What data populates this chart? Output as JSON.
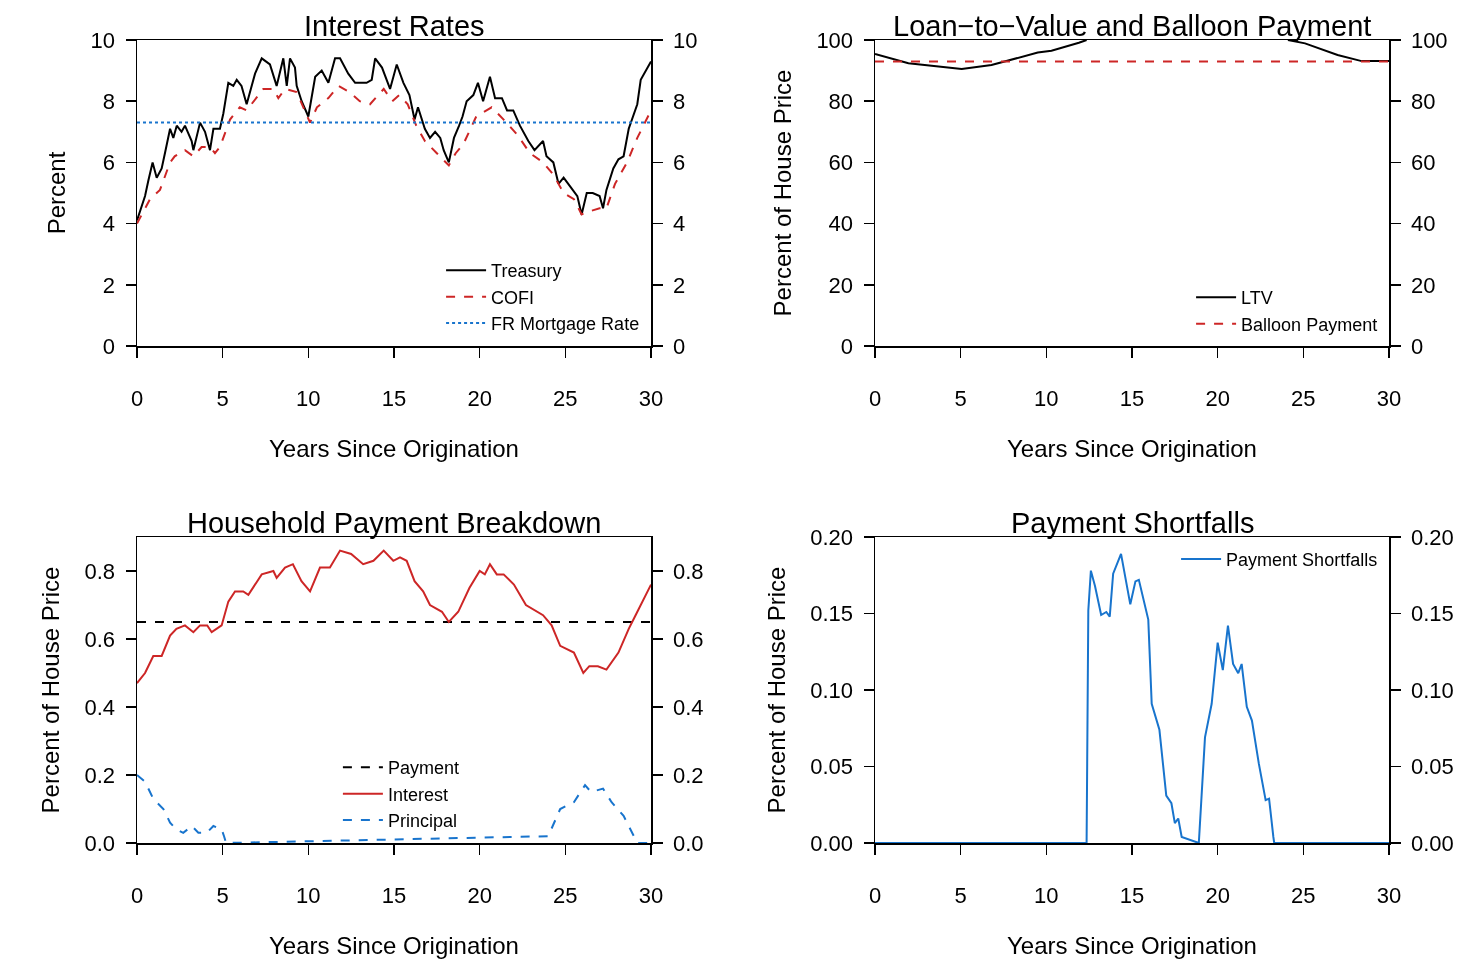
{
  "chart_data": [
    {
      "type": "line",
      "title": "Interest Rates",
      "xlabel": "Years Since Origination",
      "ylabel": "Percent",
      "xlim": [
        0,
        30
      ],
      "xticks": [
        0,
        5,
        10,
        15,
        20,
        25,
        30
      ],
      "ylim": [
        0,
        10
      ],
      "yticks": [
        0,
        2,
        4,
        6,
        8,
        10
      ],
      "y2lim": [
        0,
        10
      ],
      "y2ticks": [
        0,
        2,
        4,
        6,
        8,
        10
      ],
      "legend": "bottom right",
      "series": [
        {
          "name": "Treasury",
          "color": "#000000",
          "line_style": "solid",
          "x": [
            0,
            0.47,
            0.66,
            0.91,
            1.15,
            1.44,
            1.63,
            1.93,
            2.12,
            2.32,
            2.6,
            2.8,
            3.19,
            3.29,
            3.68,
            3.97,
            4.26,
            4.46,
            4.84,
            5.04,
            5.33,
            5.62,
            5.82,
            6.1,
            6.4,
            6.89,
            7.28,
            7.76,
            8.15,
            8.54,
            8.74,
            8.93,
            9.22,
            9.32,
            9.61,
            10,
            10.4,
            10.78,
            11.17,
            11.56,
            11.85,
            12.33,
            12.73,
            13.4,
            13.7,
            13.9,
            14.3,
            14.77,
            15.16,
            15.55,
            15.9,
            16.2,
            16.4,
            16.8,
            17.1,
            17.4,
            17.7,
            17.9,
            18.2,
            18.5,
            18.8,
            19,
            19.24,
            19.63,
            19.9,
            20.2,
            20.6,
            20.9,
            21.3,
            21.6,
            21.96,
            22.35,
            22.84,
            23.2,
            23.7,
            23.9,
            24.3,
            24.6,
            24.9,
            25.3,
            25.7,
            25.95,
            26.25,
            26.6,
            27,
            27.2,
            27.4,
            27.8,
            28.1,
            28.4,
            28.7,
            29.2,
            29.4,
            30
          ],
          "values": [
            4.1,
            4.9,
            5.4,
            6,
            5.5,
            5.8,
            6.3,
            7.1,
            6.8,
            7.2,
            7,
            7.2,
            6.7,
            6.4,
            7.3,
            7,
            6.4,
            7.1,
            7.1,
            7.6,
            8.6,
            8.5,
            8.7,
            8.5,
            7.9,
            8.9,
            9.4,
            9.2,
            8.5,
            9.4,
            8.5,
            9.4,
            9.1,
            8.5,
            8,
            7.5,
            8.8,
            9,
            8.6,
            9.4,
            9.4,
            8.9,
            8.6,
            8.6,
            8.7,
            9.4,
            9.1,
            8.4,
            9.2,
            8.6,
            8.2,
            7.4,
            7.8,
            7.1,
            6.8,
            7,
            6.8,
            6.4,
            6,
            6.8,
            7.2,
            7.5,
            8,
            8.2,
            8.6,
            8,
            8.8,
            8.1,
            8.1,
            7.7,
            7.7,
            7.2,
            6.7,
            6.4,
            6.7,
            6.2,
            6,
            5.3,
            5.5,
            5.2,
            4.9,
            4.3,
            5,
            5,
            4.9,
            4.5,
            5.1,
            5.8,
            6.1,
            6.2,
            7.1,
            7.9,
            8.7,
            9.3
          ]
        },
        {
          "name": "COFI",
          "color": "#cd2626",
          "line_style": "dashed",
          "x": [
            0,
            0.76,
            1.34,
            1.93,
            2.2,
            2.8,
            3.29,
            3.77,
            4.26,
            4.55,
            4.84,
            5.43,
            6,
            6.4,
            7.37,
            7.96,
            8.25,
            8.64,
            9.32,
            9.71,
            10.1,
            10.5,
            11.17,
            11.75,
            12.4,
            13,
            13.6,
            14.4,
            14.9,
            15.3,
            15.8,
            16.3,
            16.8,
            17.5,
            18.2,
            18.6,
            19.05,
            19.8,
            20.7,
            21.4,
            22.2,
            22.94,
            23.7,
            24.3,
            24.9,
            25.5,
            25.95,
            26.4,
            27,
            27.4,
            27.9,
            28.6,
            29.2,
            30
          ],
          "values": [
            4,
            4.8,
            5.1,
            6,
            6.2,
            6.4,
            6.2,
            6.5,
            6.5,
            6.3,
            6.5,
            7.4,
            7.8,
            7.7,
            8.4,
            8.4,
            8.1,
            8.4,
            8.3,
            7.8,
            7.3,
            7.8,
            8.1,
            8.5,
            8.3,
            8,
            7.9,
            8.4,
            8,
            8.2,
            7.9,
            7.2,
            6.7,
            6.3,
            5.9,
            6.3,
            6.6,
            7.5,
            7.8,
            7.4,
            6.9,
            6.3,
            6,
            5.6,
            5,
            4.8,
            4.3,
            4.4,
            4.5,
            4.5,
            5.3,
            6,
            6.8,
            7.7
          ]
        },
        {
          "name": "FR Mortgage Rate",
          "color": "#1874cd",
          "line_style": "dotted",
          "x": [
            0,
            30
          ],
          "values": [
            7.3,
            7.3
          ]
        }
      ]
    },
    {
      "type": "line",
      "title": "Loan−to−Value and Balloon Payment",
      "xlabel": "Years Since Origination",
      "ylabel": "Percent of House Price",
      "xlim": [
        0,
        30
      ],
      "xticks": [
        0,
        5,
        10,
        15,
        20,
        25,
        30
      ],
      "ylim": [
        0,
        100
      ],
      "yticks": [
        0,
        20,
        40,
        60,
        80,
        100
      ],
      "y2lim": [
        0,
        100
      ],
      "y2ticks": [
        0,
        20,
        40,
        60,
        80,
        100
      ],
      "legend": "bottom right",
      "series": [
        {
          "name": "LTV",
          "color": "#000000",
          "line_style": "solid",
          "x": [
            0,
            1.95,
            5.06,
            6.8,
            9.5,
            10.3,
            11.9,
            12.35,
            15,
            20,
            24.1,
            25.1,
            27,
            28.4,
            29.5,
            30
          ],
          "values": [
            95.4,
            92.4,
            90.5,
            91.8,
            95.9,
            96.5,
            99.1,
            100,
            null,
            null,
            100,
            98.9,
            95.1,
            93.1,
            93.1,
            93.1
          ]
        },
        {
          "name": "Balloon Payment",
          "color": "#cd2626",
          "line_style": "dashed",
          "x": [
            0,
            30
          ],
          "values": [
            93,
            93
          ]
        }
      ]
    },
    {
      "type": "line",
      "title": "Household Payment Breakdown",
      "xlabel": "Years Since Origination",
      "ylabel": "Percent of House Price",
      "xlim": [
        0,
        30
      ],
      "xticks": [
        0,
        5,
        10,
        15,
        20,
        25,
        30
      ],
      "ylim": [
        0,
        0.9
      ],
      "yticks": [
        {
          "value": 0,
          "label": "0.0"
        },
        0.2,
        0.4,
        0.6,
        0.8
      ],
      "y2lim": [
        0,
        0.9
      ],
      "y2ticks": [
        {
          "value": 0,
          "label": "0.0"
        },
        0.2,
        0.4,
        0.6,
        0.8
      ],
      "legend": "bottom",
      "series": [
        {
          "name": "Payment",
          "color": "#000000",
          "line_style": "dashed",
          "x": [
            0,
            30
          ],
          "values": [
            0.65,
            0.65
          ]
        },
        {
          "name": "Interest",
          "color": "#cd2626",
          "line_style": "solid",
          "x": [
            0,
            0.47,
            0.95,
            1.44,
            1.93,
            2.3,
            2.8,
            3.29,
            3.68,
            4.1,
            4.36,
            4.94,
            5.33,
            5.72,
            6.2,
            6.5,
            7.28,
            7.96,
            8.15,
            8.64,
            9.1,
            9.6,
            10.1,
            10.68,
            11.26,
            11.85,
            12.5,
            13.2,
            13.8,
            14.4,
            14.96,
            15.35,
            15.74,
            16.2,
            16.7,
            17.1,
            17.8,
            18.2,
            18.75,
            19.4,
            20,
            20.3,
            20.6,
            21,
            21.4,
            22,
            22.7,
            23.7,
            24.2,
            24.7,
            25.5,
            26.05,
            26.4,
            26.9,
            27.4,
            28.1,
            28.7,
            29.1,
            30
          ],
          "values": [
            0.47,
            0.5,
            0.55,
            0.55,
            0.61,
            0.63,
            0.64,
            0.62,
            0.64,
            0.64,
            0.62,
            0.64,
            0.71,
            0.74,
            0.74,
            0.73,
            0.79,
            0.8,
            0.78,
            0.81,
            0.82,
            0.77,
            0.74,
            0.81,
            0.81,
            0.86,
            0.85,
            0.82,
            0.83,
            0.86,
            0.83,
            0.84,
            0.83,
            0.77,
            0.74,
            0.7,
            0.68,
            0.65,
            0.68,
            0.75,
            0.8,
            0.79,
            0.82,
            0.79,
            0.79,
            0.76,
            0.7,
            0.67,
            0.64,
            0.58,
            0.56,
            0.5,
            0.52,
            0.52,
            0.51,
            0.56,
            0.63,
            0.67,
            0.76
          ]
        },
        {
          "name": "Principal",
          "color": "#1874cd",
          "line_style": "dashed",
          "x": [
            0,
            0.47,
            0.95,
            1.54,
            1.93,
            2.3,
            2.7,
            3.2,
            3.58,
            4.07,
            4.46,
            4.94,
            5.08,
            5.2,
            24,
            24.7,
            25.5,
            26.15,
            26.5,
            27.2,
            27.7,
            28.4,
            29,
            29.2,
            30
          ],
          "values": [
            0.2,
            0.18,
            0.13,
            0.1,
            0.06,
            0.04,
            0.03,
            0.05,
            0.03,
            0.03,
            0.05,
            0.04,
            0.02,
            0,
            0.02,
            0.1,
            0.12,
            0.17,
            0.15,
            0.16,
            0.12,
            0.08,
            0.02,
            0,
            0
          ]
        }
      ]
    },
    {
      "type": "line",
      "title": "Payment Shortfalls",
      "xlabel": "Years Since Origination",
      "ylabel": "Percent of House Price",
      "xlim": [
        0,
        30
      ],
      "xticks": [
        0,
        5,
        10,
        15,
        20,
        25,
        30
      ],
      "ylim": [
        0,
        0.2
      ],
      "yticks": [
        {
          "value": 0,
          "label": "0.00"
        },
        0.05,
        {
          "value": 0.1,
          "label": "0.10"
        },
        0.15,
        {
          "value": 0.2,
          "label": "0.20"
        }
      ],
      "y2lim": [
        0,
        0.2
      ],
      "y2ticks": [
        {
          "value": 0,
          "label": "0.00"
        },
        0.05,
        {
          "value": 0.1,
          "label": "0.10"
        },
        0.15,
        {
          "value": 0.2,
          "label": "0.20"
        }
      ],
      "legend": "top right",
      "series": [
        {
          "name": "Payment Shortfalls",
          "color": "#1874cd",
          "line_style": "solid",
          "x": [
            0,
            12.35,
            12.45,
            12.6,
            12.84,
            13.2,
            13.5,
            13.7,
            13.9,
            14.36,
            14.9,
            15.2,
            15.4,
            15.95,
            16.15,
            16.6,
            17,
            17.3,
            17.5,
            17.7,
            17.9,
            18.9,
            19.26,
            19.65,
            20,
            20.3,
            20.6,
            20.9,
            21.2,
            21.4,
            21.7,
            22,
            22.4,
            22.8,
            23,
            23.25,
            23.3,
            30
          ],
          "values": [
            0,
            0,
            0.152,
            0.178,
            0.168,
            0.149,
            0.151,
            0.148,
            0.176,
            0.189,
            0.156,
            0.171,
            0.172,
            0.146,
            0.091,
            0.074,
            0.031,
            0.026,
            0.013,
            0.016,
            0.004,
            0,
            0.069,
            0.091,
            0.131,
            0.113,
            0.142,
            0.117,
            0.111,
            0.117,
            0.089,
            0.08,
            0.052,
            0.028,
            0.029,
            0.004,
            0,
            0
          ]
        }
      ]
    }
  ]
}
